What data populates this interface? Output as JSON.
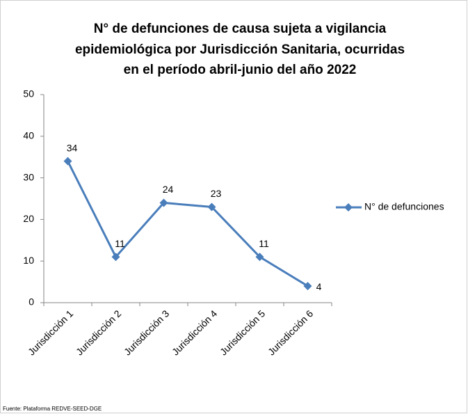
{
  "chart_data": {
    "type": "line",
    "title": [
      "N° de defunciones de causa sujeta a vigilancia",
      "epidemiológica por Jurisdicción Sanitaria, ocurridas",
      "en el período abril-junio del año 2022"
    ],
    "categories": [
      "Jurisdicción 1",
      "Jurisdicción 2",
      "Jurisdicción 3",
      "Jurisdicción 4",
      "Jurisdicción 5",
      "Jurisdicción 6"
    ],
    "series": [
      {
        "name": "N° de defunciones",
        "color": "#4a7ebb",
        "values": [
          34,
          11,
          24,
          23,
          11,
          4
        ]
      }
    ],
    "ylim": [
      0,
      50
    ],
    "yticks": [
      0,
      10,
      20,
      30,
      40,
      50
    ],
    "grid": false,
    "legend": "right",
    "source": "Fuente: Plataforma REDVE-SEED-DGE"
  }
}
